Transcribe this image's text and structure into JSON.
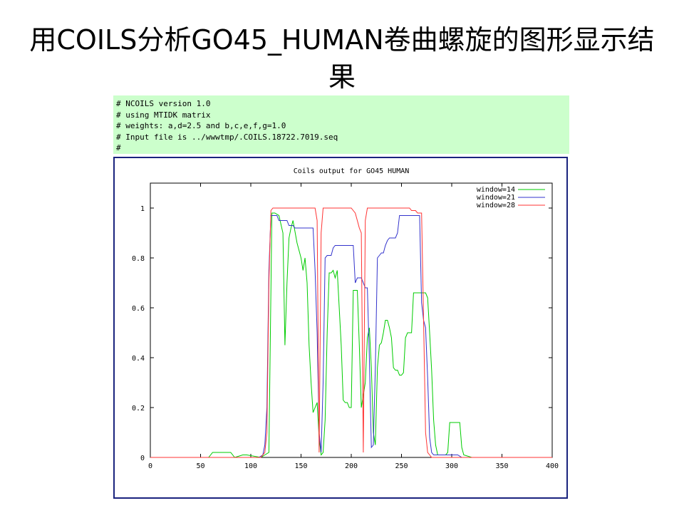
{
  "slide": {
    "title": "用COILS分析GO45_HUMAN卷曲螺旋的图形显示结果"
  },
  "header": {
    "lines": [
      "# NCOILS version 1.0",
      "# using MTIDK matrix",
      "# weights: a,d=2.5 and b,c,e,f,g=1.0",
      "# Input file is ../wwwtmp/.COILS.18722.7019.seq",
      "#"
    ]
  },
  "chart_data": {
    "type": "line",
    "title": "Coils output for GO45 HUMAN",
    "xlabel": "",
    "ylabel": "",
    "xlim": [
      0,
      400
    ],
    "ylim": [
      0,
      1.1
    ],
    "xticks": [
      0,
      50,
      100,
      150,
      200,
      250,
      300,
      350,
      400
    ],
    "yticks": [
      0,
      0.2,
      0.4,
      0.6,
      0.8,
      1
    ],
    "ytick_labels": [
      "0",
      "0.2",
      "0.4",
      "0.6",
      "0.8",
      "1"
    ],
    "grid": false,
    "legend": "top-right",
    "series": [
      {
        "name": "window=14",
        "color": "#00cc00",
        "x": [
          0,
          58,
          62,
          80,
          84,
          92,
          96,
          110,
          114,
          118,
          121,
          124,
          128,
          132,
          134,
          136,
          138,
          140,
          142,
          146,
          150,
          152,
          154,
          156,
          158,
          160,
          162,
          164,
          166,
          168,
          170,
          172,
          174,
          176,
          178,
          180,
          182,
          184,
          186,
          188,
          190,
          192,
          194,
          196,
          198,
          200,
          202,
          204,
          206,
          208,
          210,
          212,
          214,
          216,
          218,
          220,
          222,
          224,
          226,
          228,
          230,
          232,
          234,
          236,
          238,
          240,
          242,
          244,
          246,
          248,
          250,
          252,
          254,
          256,
          258,
          260,
          262,
          264,
          266,
          268,
          270,
          272,
          274,
          276,
          278,
          280,
          282,
          284,
          286,
          288,
          290,
          292,
          294,
          296,
          298,
          300,
          302,
          304,
          306,
          308,
          310,
          312,
          320,
          330,
          340,
          350,
          360,
          370,
          380,
          390,
          400
        ],
        "y": [
          0,
          0,
          0.02,
          0.02,
          0,
          0.01,
          0.01,
          0,
          0.01,
          0.02,
          0.98,
          0.98,
          0.97,
          0.9,
          0.45,
          0.7,
          0.88,
          0.92,
          0.95,
          0.86,
          0.8,
          0.75,
          0.8,
          0.7,
          0.45,
          0.3,
          0.18,
          0.2,
          0.22,
          0.08,
          0.01,
          0.02,
          0.15,
          0.5,
          0.74,
          0.74,
          0.75,
          0.72,
          0.75,
          0.6,
          0.45,
          0.23,
          0.22,
          0.22,
          0.2,
          0.2,
          0.67,
          0.67,
          0.67,
          0.45,
          0.2,
          0.25,
          0.3,
          0.48,
          0.52,
          0.36,
          0.1,
          0.05,
          0.36,
          0.45,
          0.46,
          0.5,
          0.55,
          0.55,
          0.52,
          0.48,
          0.36,
          0.35,
          0.35,
          0.33,
          0.33,
          0.34,
          0.48,
          0.5,
          0.5,
          0.5,
          0.66,
          0.66,
          0.66,
          0.66,
          0.66,
          0.66,
          0.66,
          0.64,
          0.5,
          0.35,
          0.15,
          0.05,
          0.01,
          0.01,
          0.01,
          0.01,
          0.01,
          0.02,
          0.14,
          0.14,
          0.14,
          0.14,
          0.14,
          0.14,
          0.04,
          0.01,
          0,
          0,
          0,
          0,
          0,
          0,
          0,
          0,
          0
        ]
      },
      {
        "name": "window=21",
        "color": "#3333cc",
        "x": [
          0,
          25,
          100,
          108,
          112,
          114,
          116,
          118,
          120,
          122,
          124,
          126,
          128,
          130,
          132,
          134,
          136,
          138,
          140,
          142,
          144,
          146,
          148,
          150,
          152,
          154,
          156,
          158,
          160,
          162,
          164,
          166,
          168,
          170,
          172,
          174,
          176,
          178,
          180,
          182,
          184,
          186,
          188,
          190,
          192,
          194,
          196,
          198,
          200,
          202,
          204,
          206,
          208,
          210,
          212,
          214,
          216,
          218,
          220,
          222,
          224,
          226,
          228,
          230,
          232,
          234,
          236,
          238,
          240,
          242,
          244,
          246,
          248,
          250,
          252,
          254,
          256,
          258,
          260,
          262,
          264,
          266,
          268,
          270,
          272,
          274,
          276,
          278,
          280,
          282,
          284,
          286,
          288,
          290,
          292,
          294,
          296,
          298,
          300,
          302,
          304,
          306,
          310,
          320,
          330,
          340,
          350,
          360,
          370,
          380,
          390,
          400
        ],
        "y": [
          0,
          0,
          0,
          0,
          0.01,
          0.05,
          0.2,
          0.75,
          0.97,
          0.97,
          0.97,
          0.97,
          0.95,
          0.95,
          0.95,
          0.95,
          0.95,
          0.93,
          0.93,
          0.93,
          0.92,
          0.92,
          0.92,
          0.92,
          0.92,
          0.92,
          0.92,
          0.92,
          0.92,
          0.92,
          0.75,
          0.5,
          0.1,
          0.02,
          0.3,
          0.8,
          0.81,
          0.81,
          0.81,
          0.84,
          0.85,
          0.85,
          0.85,
          0.85,
          0.85,
          0.85,
          0.85,
          0.85,
          0.85,
          0.85,
          0.7,
          0.72,
          0.72,
          0.72,
          0.7,
          0.68,
          0.68,
          0.4,
          0.04,
          0.05,
          0.36,
          0.8,
          0.81,
          0.82,
          0.82,
          0.85,
          0.87,
          0.88,
          0.88,
          0.88,
          0.88,
          0.9,
          0.97,
          0.97,
          0.97,
          0.97,
          0.97,
          0.97,
          0.97,
          0.97,
          0.97,
          0.97,
          0.97,
          0.62,
          0.55,
          0.52,
          0.32,
          0.08,
          0.02,
          0.01,
          0.01,
          0.01,
          0.01,
          0.01,
          0.01,
          0.01,
          0.01,
          0.01,
          0.01,
          0.01,
          0.01,
          0.01,
          0,
          0,
          0,
          0,
          0,
          0,
          0,
          0,
          0,
          0
        ]
      },
      {
        "name": "window=28",
        "color": "#ff3333",
        "x": [
          0,
          50,
          100,
          110,
          114,
          116,
          118,
          120,
          122,
          124,
          126,
          128,
          130,
          132,
          134,
          136,
          138,
          140,
          142,
          144,
          146,
          148,
          150,
          152,
          154,
          156,
          158,
          160,
          162,
          164,
          166,
          168,
          170,
          172,
          174,
          176,
          178,
          180,
          182,
          184,
          186,
          188,
          190,
          192,
          194,
          196,
          198,
          200,
          202,
          204,
          206,
          208,
          210,
          212,
          214,
          216,
          218,
          220,
          222,
          224,
          226,
          228,
          230,
          232,
          234,
          236,
          238,
          240,
          242,
          244,
          246,
          248,
          250,
          252,
          254,
          256,
          258,
          260,
          262,
          264,
          266,
          268,
          270,
          272,
          274,
          276,
          278,
          280,
          282,
          284,
          290,
          300,
          310,
          320,
          330,
          340,
          350,
          360,
          370,
          380,
          390,
          400
        ],
        "y": [
          0,
          0,
          0,
          0,
          0.02,
          0.1,
          0.7,
          0.99,
          1,
          1,
          1,
          1,
          1,
          1,
          1,
          1,
          1,
          1,
          1,
          1,
          1,
          1,
          1,
          1,
          1,
          1,
          1,
          1,
          1,
          1,
          0.95,
          0.02,
          0.9,
          1,
          1,
          1,
          1,
          1,
          1,
          1,
          1,
          1,
          1,
          1,
          1,
          1,
          1,
          1,
          0.99,
          0.98,
          0.95,
          0.92,
          0.9,
          0.02,
          0.95,
          1,
          1,
          1,
          1,
          1,
          1,
          1,
          1,
          1,
          1,
          1,
          1,
          1,
          1,
          1,
          1,
          1,
          1,
          1,
          1,
          1,
          1,
          0.99,
          0.99,
          0.99,
          0.98,
          0.98,
          0.98,
          0.55,
          0.1,
          0.02,
          0.01,
          0,
          0,
          0,
          0,
          0,
          0,
          0,
          0,
          0,
          0,
          0,
          0,
          0,
          0,
          0
        ]
      }
    ]
  }
}
